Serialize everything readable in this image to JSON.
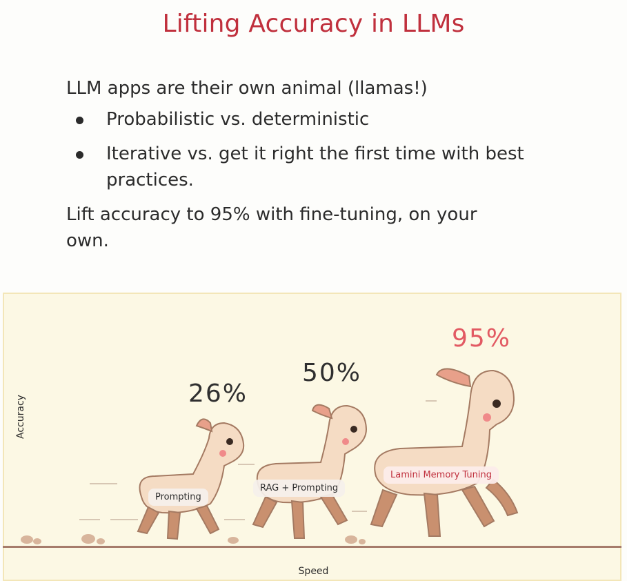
{
  "slide": {
    "title": "Lifting Accuracy in LLMs",
    "intro": "LLM apps are their own animal (llamas!)",
    "bullets": [
      "Probabilistic vs. deterministic",
      "Iterative vs. get it right the first time with best practices."
    ],
    "outro": "Lift accuracy to 95% with fine-tuning, on your own."
  },
  "illustration": {
    "y_axis_label": "Accuracy",
    "x_axis_label": "Speed",
    "items": [
      {
        "percent": "26%",
        "tag": "Prompting"
      },
      {
        "percent": "50%",
        "tag": "RAG + Prompting"
      },
      {
        "percent": "95%",
        "tag": "Lamini Memory Tuning"
      }
    ]
  },
  "colors": {
    "accent": "#c0303d",
    "highlight": "#e25a63",
    "panel_bg": "#fcf8e4",
    "llama_fur": "#f5dcc4",
    "llama_ear": "#e8a08a",
    "ground": "#a67c6b"
  }
}
